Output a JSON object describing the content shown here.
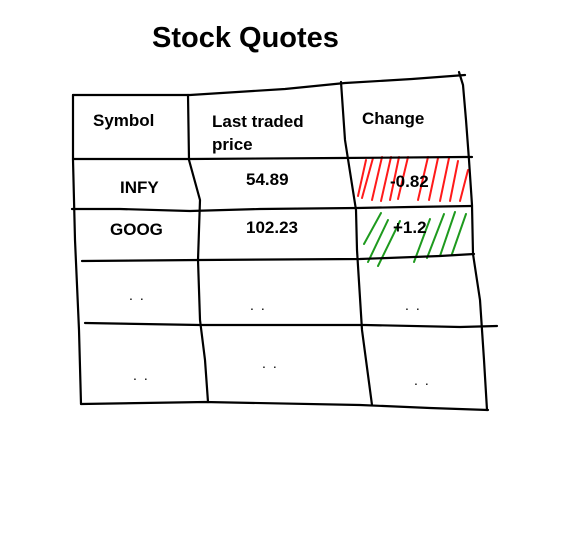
{
  "title": "Stock Quotes",
  "headers": {
    "symbol": "Symbol",
    "last_price": "Last traded price",
    "change": "Change"
  },
  "rows": [
    {
      "symbol": "INFY",
      "last_price": "54.89",
      "change": "-0.82",
      "change_direction": "down"
    },
    {
      "symbol": "GOOG",
      "last_price": "102.23",
      "change": "+1.2",
      "change_direction": "up"
    }
  ],
  "ellipsis_rows": [
    {
      "symbol": "..",
      "last_price": "..",
      "change": ".."
    },
    {
      "symbol": "..",
      "last_price": "..",
      "change": ".."
    }
  ],
  "colors": {
    "line": "#000000",
    "down_hatch": "#ff1a1a",
    "up_hatch": "#1e9a1e"
  }
}
